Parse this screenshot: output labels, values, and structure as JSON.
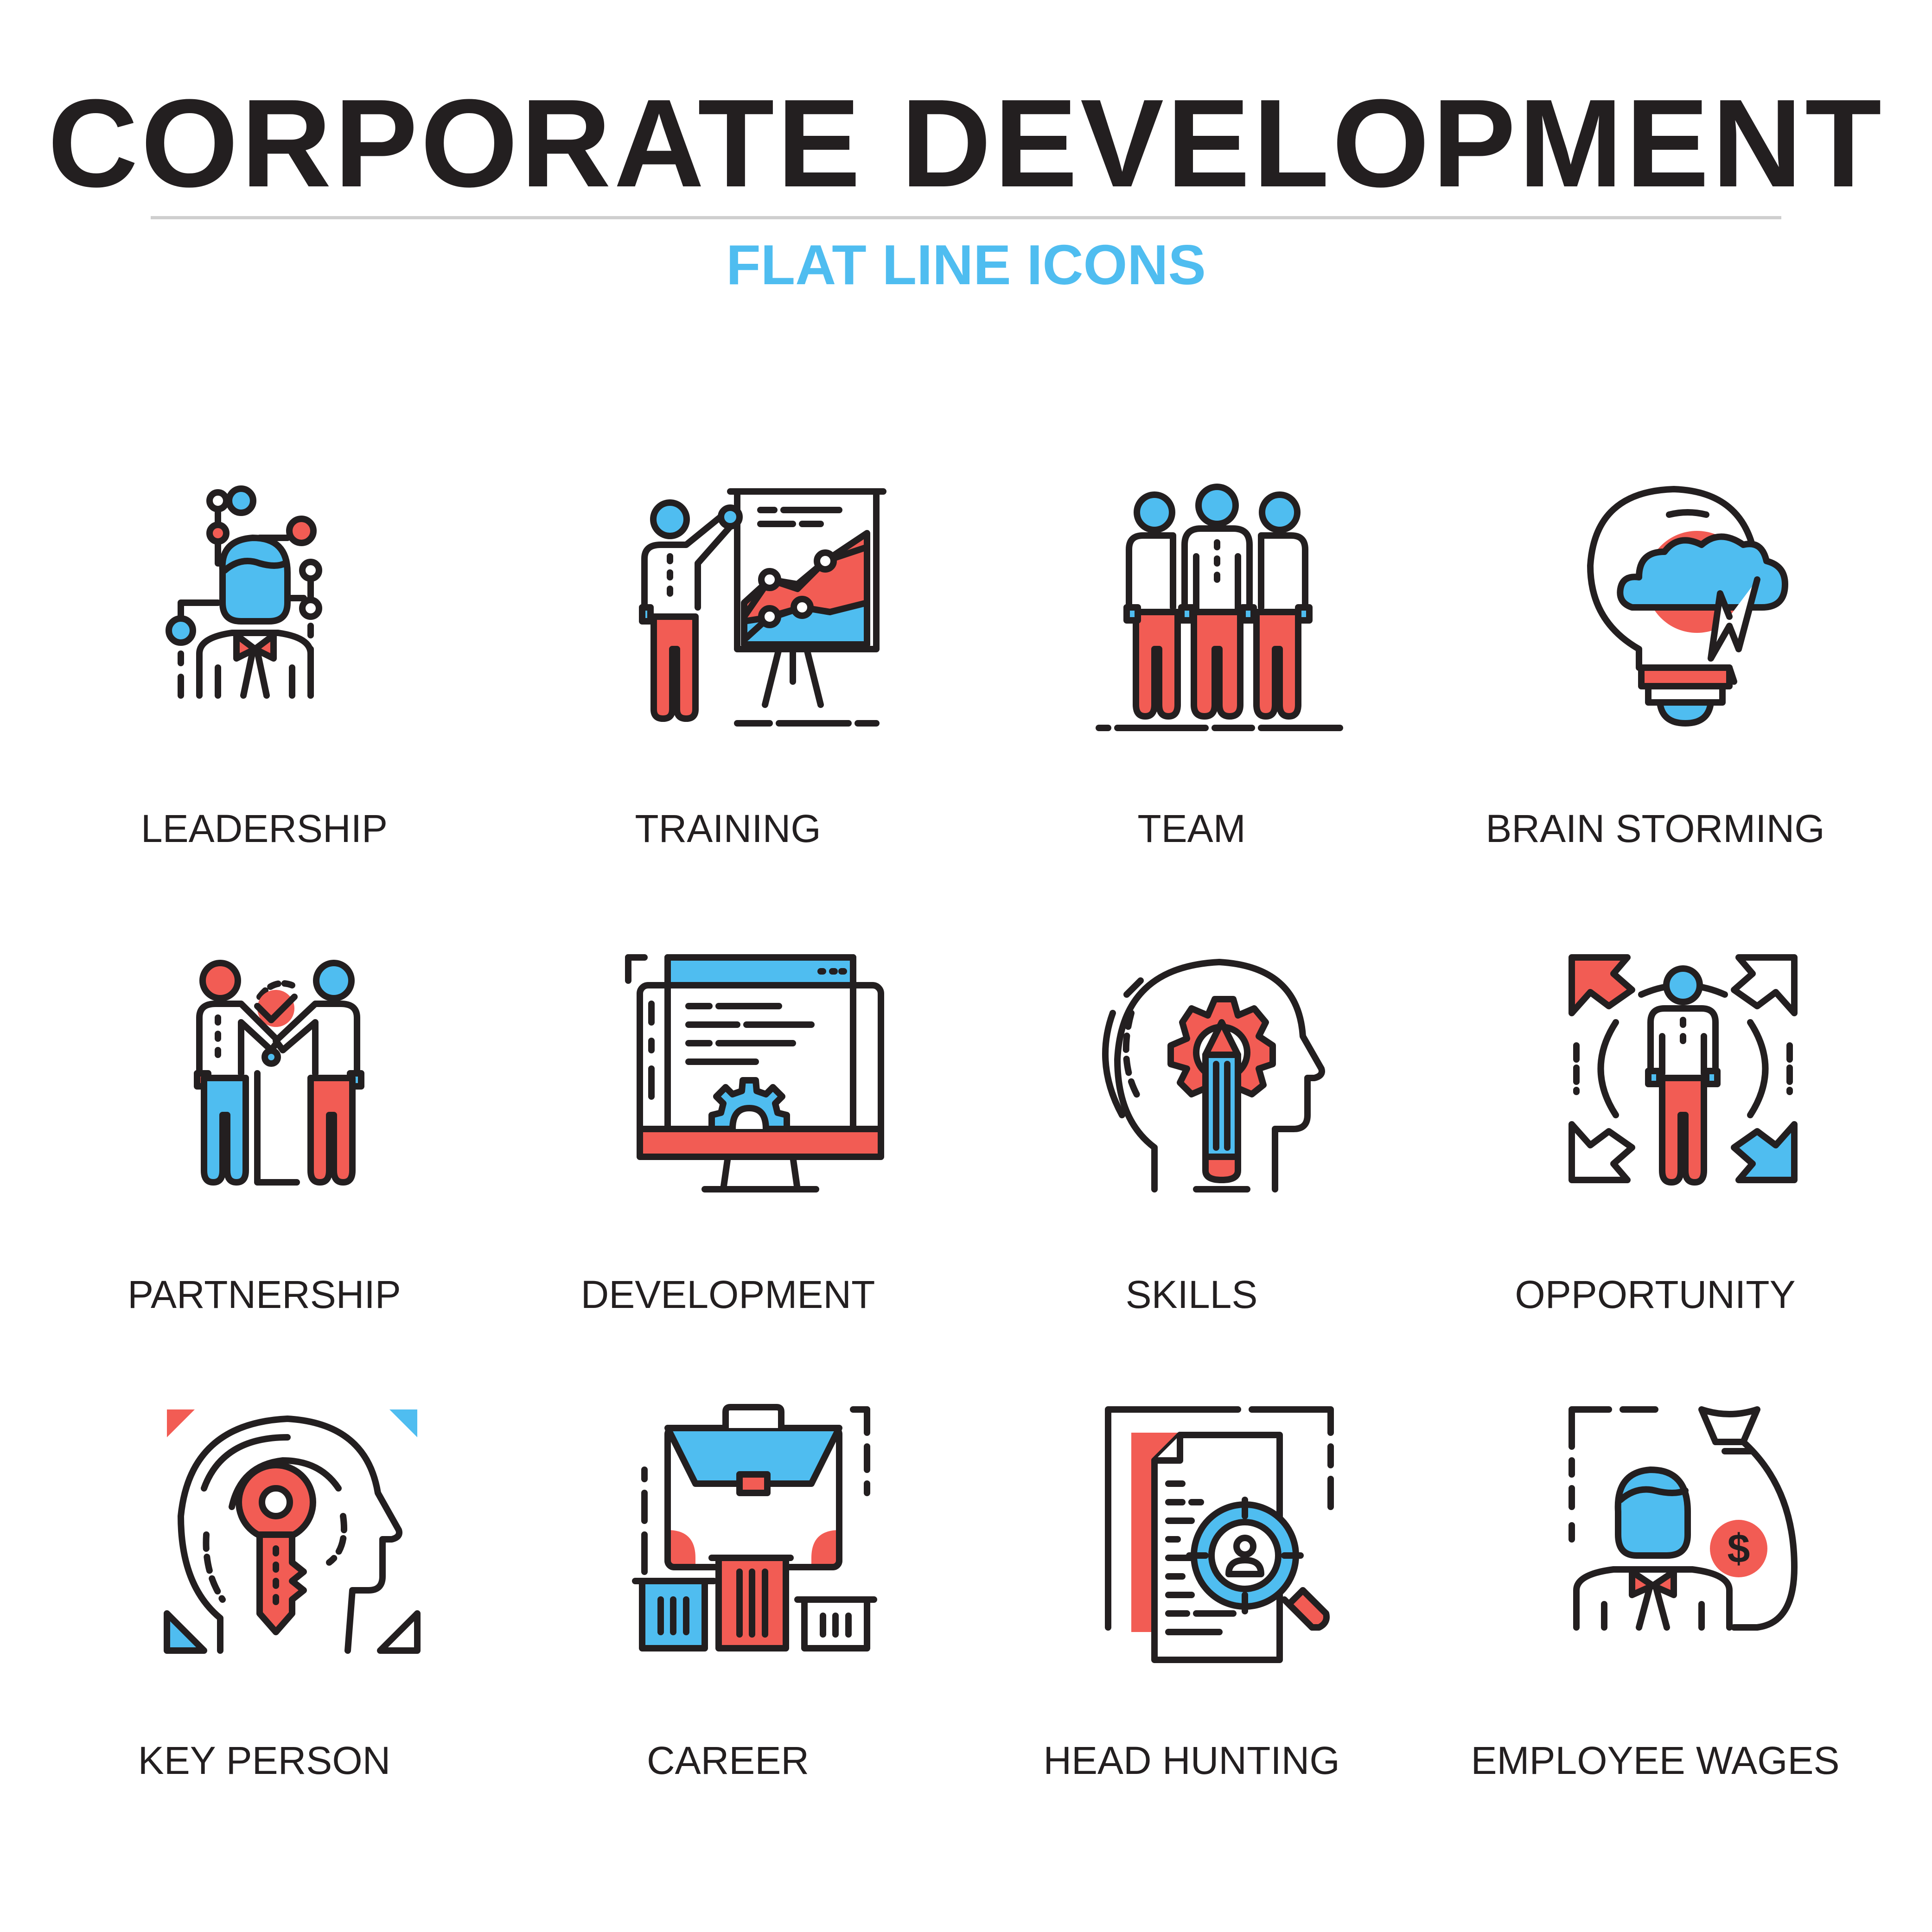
{
  "title": "CORPORATE DEVELOPMENT",
  "subtitle": "FLAT LINE ICONS",
  "colors": {
    "outline": "#231f20",
    "blue": "#4fbdf0",
    "red": "#f25c54",
    "subtitle": "#4fbdf0",
    "rule": "#cfcfcf",
    "background": "#ffffff"
  },
  "icons": [
    {
      "label": "LEADERSHIP",
      "icon": "leader-person-network-icon"
    },
    {
      "label": "TRAINING",
      "icon": "presenter-chart-board-icon"
    },
    {
      "label": "TEAM",
      "icon": "three-people-team-icon"
    },
    {
      "label": "BRAIN STORMING",
      "icon": "lightbulb-cloud-lightning-icon"
    },
    {
      "label": "PARTNERSHIP",
      "icon": "handshake-people-icon"
    },
    {
      "label": "DEVELOPMENT",
      "icon": "monitor-gear-code-icon"
    },
    {
      "label": "SKILLS",
      "icon": "head-gear-pencil-icon"
    },
    {
      "label": "OPPORTUNITY",
      "icon": "person-four-arrows-icon"
    },
    {
      "label": "KEY PERSON",
      "icon": "head-key-icon"
    },
    {
      "label": "CAREER",
      "icon": "briefcase-podium-icon"
    },
    {
      "label": "HEAD HUNTING",
      "icon": "resume-magnifier-icon"
    },
    {
      "label": "EMPLOYEE WAGES",
      "icon": "person-money-bag-icon"
    }
  ]
}
